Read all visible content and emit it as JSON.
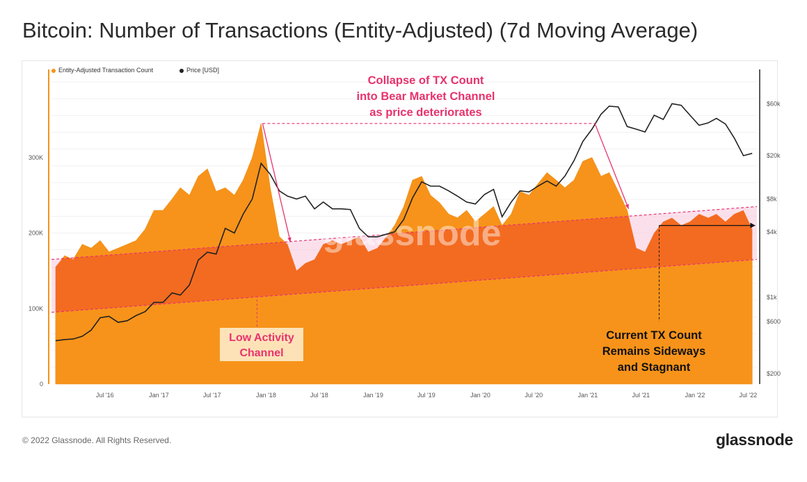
{
  "title": "Bitcoin: Number of Transactions (Entity-Adjusted) (7d Moving Average)",
  "footer": {
    "copyright": "© 2022 Glassnode. All Rights Reserved.",
    "logo": "glassnode"
  },
  "watermark": "glassnode",
  "colors": {
    "tx": "#f7931a",
    "price": "#222222",
    "channel": "#f36b20",
    "pink": "#f8c7dc",
    "annotation": "#e8336d",
    "box": "#fde2b8"
  },
  "legend": [
    {
      "label": "Entity-Adjusted Transaction Count",
      "color": "#f7931a"
    },
    {
      "label": "Price [USD]",
      "color": "#222222"
    }
  ],
  "annotations": {
    "collapse": [
      "Collapse of TX Count",
      "into Bear Market Channel",
      "as price deteriorates"
    ],
    "low_activity": [
      "Low Activity",
      "Channel"
    ],
    "current": [
      "Current TX Count",
      "Remains Sideways",
      "and Stagnant"
    ]
  },
  "chart_data": {
    "type": "area",
    "x_ticks": [
      "Jul '16",
      "Jan '17",
      "Jul '17",
      "Jan '18",
      "Jul '18",
      "Jan '19",
      "Jul '19",
      "Jan '20",
      "Jul '20",
      "Jan '21",
      "Jul '21",
      "Jan '22",
      "Jul '22"
    ],
    "x_tick_dates": [
      "2016-07-01",
      "2017-01-01",
      "2017-07-01",
      "2018-01-01",
      "2018-07-01",
      "2019-01-01",
      "2019-07-01",
      "2020-01-01",
      "2020-07-01",
      "2021-01-01",
      "2021-07-01",
      "2022-01-01",
      "2022-07-01"
    ],
    "y_left_ticks": [
      "0",
      "100K",
      "200K",
      "300K"
    ],
    "y_left_values": [
      0,
      100000,
      200000,
      300000
    ],
    "y_left_range": [
      0,
      400000
    ],
    "y_right_ticks": [
      "$200",
      "$600",
      "$1k",
      "$4k",
      "$8k",
      "$20k",
      "$60k"
    ],
    "y_right_values": [
      200,
      600,
      1000,
      4000,
      8000,
      20000,
      60000
    ],
    "y_right_scale": "log",
    "series": [
      {
        "name": "Entity-Adjusted Transaction Count",
        "axis": "left",
        "points": [
          [
            "2016-01-15",
            155000
          ],
          [
            "2016-02-15",
            170000
          ],
          [
            "2016-03-15",
            165000
          ],
          [
            "2016-04-15",
            185000
          ],
          [
            "2016-05-15",
            180000
          ],
          [
            "2016-06-15",
            190000
          ],
          [
            "2016-07-15",
            175000
          ],
          [
            "2016-08-15",
            180000
          ],
          [
            "2016-09-15",
            185000
          ],
          [
            "2016-10-15",
            190000
          ],
          [
            "2016-11-15",
            205000
          ],
          [
            "2016-12-15",
            230000
          ],
          [
            "2017-01-15",
            230000
          ],
          [
            "2017-02-15",
            245000
          ],
          [
            "2017-03-15",
            260000
          ],
          [
            "2017-04-15",
            250000
          ],
          [
            "2017-05-15",
            275000
          ],
          [
            "2017-06-15",
            285000
          ],
          [
            "2017-07-15",
            255000
          ],
          [
            "2017-08-15",
            260000
          ],
          [
            "2017-09-15",
            250000
          ],
          [
            "2017-10-15",
            270000
          ],
          [
            "2017-11-15",
            300000
          ],
          [
            "2017-12-15",
            345000
          ],
          [
            "2018-01-15",
            260000
          ],
          [
            "2018-02-15",
            195000
          ],
          [
            "2018-03-15",
            185000
          ],
          [
            "2018-04-15",
            150000
          ],
          [
            "2018-05-15",
            160000
          ],
          [
            "2018-06-15",
            165000
          ],
          [
            "2018-07-15",
            185000
          ],
          [
            "2018-08-15",
            190000
          ],
          [
            "2018-09-15",
            185000
          ],
          [
            "2018-10-15",
            190000
          ],
          [
            "2018-11-15",
            195000
          ],
          [
            "2018-12-15",
            175000
          ],
          [
            "2019-01-15",
            180000
          ],
          [
            "2019-02-15",
            195000
          ],
          [
            "2019-03-15",
            210000
          ],
          [
            "2019-04-15",
            235000
          ],
          [
            "2019-05-15",
            270000
          ],
          [
            "2019-06-15",
            275000
          ],
          [
            "2019-07-15",
            250000
          ],
          [
            "2019-08-15",
            240000
          ],
          [
            "2019-09-15",
            225000
          ],
          [
            "2019-10-15",
            220000
          ],
          [
            "2019-11-15",
            230000
          ],
          [
            "2019-12-15",
            215000
          ],
          [
            "2020-01-15",
            225000
          ],
          [
            "2020-02-15",
            235000
          ],
          [
            "2020-03-15",
            210000
          ],
          [
            "2020-04-15",
            225000
          ],
          [
            "2020-05-15",
            255000
          ],
          [
            "2020-06-15",
            250000
          ],
          [
            "2020-07-15",
            265000
          ],
          [
            "2020-08-15",
            280000
          ],
          [
            "2020-09-15",
            270000
          ],
          [
            "2020-10-15",
            260000
          ],
          [
            "2020-11-15",
            270000
          ],
          [
            "2020-12-15",
            295000
          ],
          [
            "2021-01-15",
            300000
          ],
          [
            "2021-02-15",
            275000
          ],
          [
            "2021-03-15",
            280000
          ],
          [
            "2021-04-15",
            255000
          ],
          [
            "2021-05-15",
            230000
          ],
          [
            "2021-06-15",
            180000
          ],
          [
            "2021-07-15",
            175000
          ],
          [
            "2021-08-15",
            200000
          ],
          [
            "2021-09-15",
            215000
          ],
          [
            "2021-10-15",
            220000
          ],
          [
            "2021-11-15",
            210000
          ],
          [
            "2021-12-15",
            215000
          ],
          [
            "2022-01-15",
            225000
          ],
          [
            "2022-02-15",
            220000
          ],
          [
            "2022-03-15",
            225000
          ],
          [
            "2022-04-15",
            215000
          ],
          [
            "2022-05-15",
            225000
          ],
          [
            "2022-06-15",
            230000
          ],
          [
            "2022-07-15",
            205000
          ]
        ]
      },
      {
        "name": "Price [USD]",
        "axis": "right",
        "points": [
          [
            "2016-01-15",
            400
          ],
          [
            "2016-02-15",
            410
          ],
          [
            "2016-03-15",
            415
          ],
          [
            "2016-04-15",
            440
          ],
          [
            "2016-05-15",
            500
          ],
          [
            "2016-06-15",
            650
          ],
          [
            "2016-07-15",
            670
          ],
          [
            "2016-08-15",
            590
          ],
          [
            "2016-09-15",
            610
          ],
          [
            "2016-10-15",
            680
          ],
          [
            "2016-11-15",
            740
          ],
          [
            "2016-12-15",
            900
          ],
          [
            "2017-01-15",
            900
          ],
          [
            "2017-02-15",
            1100
          ],
          [
            "2017-03-15",
            1050
          ],
          [
            "2017-04-15",
            1300
          ],
          [
            "2017-05-15",
            2200
          ],
          [
            "2017-06-15",
            2600
          ],
          [
            "2017-07-15",
            2500
          ],
          [
            "2017-08-15",
            4300
          ],
          [
            "2017-09-15",
            3900
          ],
          [
            "2017-10-15",
            5800
          ],
          [
            "2017-11-15",
            8000
          ],
          [
            "2017-12-15",
            17000
          ],
          [
            "2018-01-15",
            13500
          ],
          [
            "2018-02-15",
            9500
          ],
          [
            "2018-03-15",
            8500
          ],
          [
            "2018-04-15",
            8000
          ],
          [
            "2018-05-15",
            8500
          ],
          [
            "2018-06-15",
            6500
          ],
          [
            "2018-07-15",
            7500
          ],
          [
            "2018-08-15",
            6500
          ],
          [
            "2018-09-15",
            6500
          ],
          [
            "2018-10-15",
            6400
          ],
          [
            "2018-11-15",
            4300
          ],
          [
            "2018-12-15",
            3600
          ],
          [
            "2019-01-15",
            3600
          ],
          [
            "2019-02-15",
            3800
          ],
          [
            "2019-03-15",
            4000
          ],
          [
            "2019-04-15",
            5200
          ],
          [
            "2019-05-15",
            8200
          ],
          [
            "2019-06-15",
            11500
          ],
          [
            "2019-07-15",
            10500
          ],
          [
            "2019-08-15",
            10500
          ],
          [
            "2019-09-15",
            9500
          ],
          [
            "2019-10-15",
            8500
          ],
          [
            "2019-11-15",
            7500
          ],
          [
            "2019-12-15",
            7200
          ],
          [
            "2020-01-15",
            8800
          ],
          [
            "2020-02-15",
            9800
          ],
          [
            "2020-03-15",
            5500
          ],
          [
            "2020-04-15",
            7500
          ],
          [
            "2020-05-15",
            9500
          ],
          [
            "2020-06-15",
            9300
          ],
          [
            "2020-07-15",
            10500
          ],
          [
            "2020-08-15",
            11700
          ],
          [
            "2020-09-15",
            10500
          ],
          [
            "2020-10-15",
            13000
          ],
          [
            "2020-11-15",
            18000
          ],
          [
            "2020-12-15",
            27000
          ],
          [
            "2021-01-15",
            35000
          ],
          [
            "2021-02-15",
            48000
          ],
          [
            "2021-03-15",
            57000
          ],
          [
            "2021-04-15",
            56000
          ],
          [
            "2021-05-15",
            37000
          ],
          [
            "2021-06-15",
            35000
          ],
          [
            "2021-07-15",
            33000
          ],
          [
            "2021-08-15",
            47000
          ],
          [
            "2021-09-15",
            43000
          ],
          [
            "2021-10-15",
            60000
          ],
          [
            "2021-11-15",
            58000
          ],
          [
            "2021-12-15",
            47000
          ],
          [
            "2022-01-15",
            38000
          ],
          [
            "2022-02-15",
            40000
          ],
          [
            "2022-03-15",
            44000
          ],
          [
            "2022-04-15",
            39000
          ],
          [
            "2022-05-15",
            29000
          ],
          [
            "2022-06-15",
            20000
          ],
          [
            "2022-07-15",
            21000
          ]
        ]
      }
    ],
    "channel": {
      "upper": [
        [
          "2016-01-01",
          165000
        ],
        [
          "2022-07-31",
          235000
        ]
      ],
      "lower": [
        [
          "2016-01-01",
          95000
        ],
        [
          "2022-07-31",
          165000
        ]
      ]
    },
    "ylabel": "",
    "xlabel": ""
  }
}
